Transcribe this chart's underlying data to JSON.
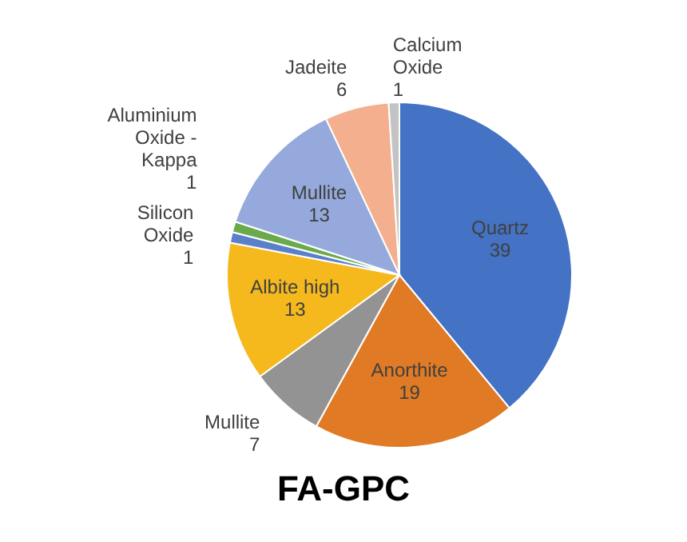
{
  "chart_data": {
    "type": "pie",
    "title": "FA-GPC",
    "categories": [
      "Quartz",
      "Anorthite",
      "Mullite",
      "Albite high",
      "Silicon Oxide",
      "Aluminium Oxide - Kappa",
      "Mullite",
      "Jadeite",
      "Calcium Oxide"
    ],
    "values": [
      39,
      19,
      7,
      13,
      1,
      1,
      13,
      6,
      1
    ],
    "colors": [
      "#4472c4",
      "#e07a24",
      "#939393",
      "#f5b91e",
      "#5b80c9",
      "#6aaa4a",
      "#95a9dc",
      "#f4b08e",
      "#c3c3c3"
    ],
    "data_labels": true,
    "legend": false
  }
}
